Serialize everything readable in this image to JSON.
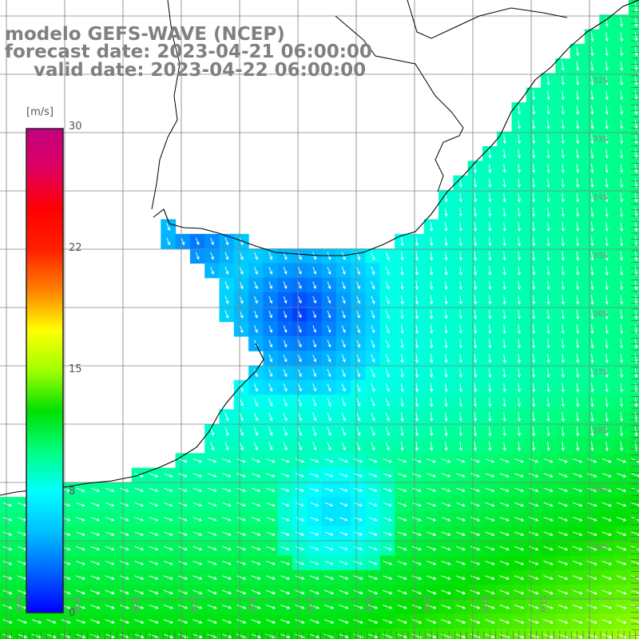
{
  "title": {
    "model": "modelo GEFS-WAVE (NCEP)",
    "forecast": "forecast date: 2023-04-21 06:00:00",
    "valid": "valid date: 2023-04-22 06:00:00"
  },
  "colorbar": {
    "unit": "[m/s]",
    "tick_labels": [
      "30",
      "22",
      "15",
      "8",
      "0"
    ],
    "range": [
      0,
      30
    ],
    "colors": [
      "#0000ff",
      "#0060ff",
      "#00c0ff",
      "#00ffff",
      "#00ff80",
      "#00e000",
      "#a0ff00",
      "#ffff00",
      "#ff8000",
      "#ff2000",
      "#ff0000",
      "#e00060",
      "#c00080"
    ]
  },
  "map": {
    "field": "wind speed and direction",
    "lon_labels": [
      "60W",
      "59W",
      "58W",
      "57W",
      "56W",
      "55W",
      "54W",
      "53W",
      "52W",
      "51W"
    ],
    "lat_labels": [
      "32S",
      "33S",
      "34S",
      "35S",
      "36S",
      "37S",
      "38S",
      "39S",
      "40S"
    ],
    "land_color": "#ffffff",
    "grid_color": "#808080"
  }
}
